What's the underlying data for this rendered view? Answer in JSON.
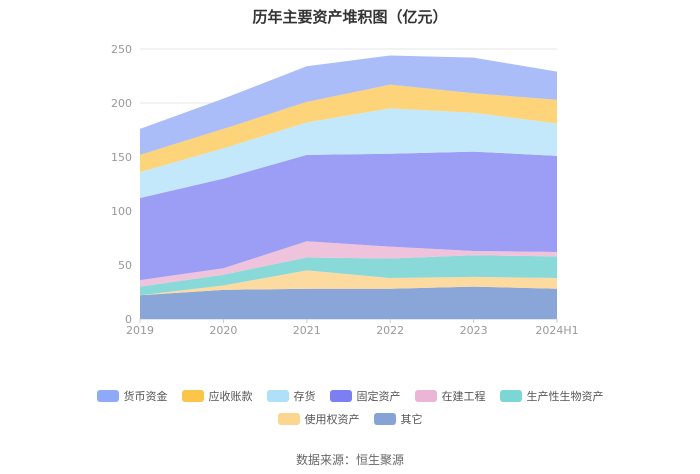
{
  "chart_data": {
    "type": "area",
    "stacked": true,
    "title": "历年主要资产堆积图（亿元）",
    "categories": [
      "2019",
      "2020",
      "2021",
      "2022",
      "2023",
      "2024H1"
    ],
    "ylim": [
      0,
      250
    ],
    "yticks": [
      0,
      50,
      100,
      150,
      200,
      250
    ],
    "grid": true,
    "legend_position": "bottom",
    "series": [
      {
        "name": "其它",
        "color": "#8aa6d8",
        "values": [
          22,
          27,
          28,
          28,
          30,
          28
        ]
      },
      {
        "name": "使用权资产",
        "color": "#fddba0",
        "values": [
          0,
          4,
          17,
          10,
          9,
          10
        ]
      },
      {
        "name": "生产性生物资产",
        "color": "#8ad9d9",
        "values": [
          8,
          10,
          12,
          18,
          20,
          20
        ]
      },
      {
        "name": "在建工程",
        "color": "#f0c3dd",
        "values": [
          6,
          6,
          15,
          11,
          4,
          4
        ]
      },
      {
        "name": "固定资产",
        "color": "#9c9ef6",
        "values": [
          76,
          83,
          80,
          86,
          92,
          89
        ]
      },
      {
        "name": "存货",
        "color": "#c4e8fb",
        "values": [
          24,
          28,
          30,
          42,
          36,
          30
        ]
      },
      {
        "name": "应收账款",
        "color": "#fdd47a",
        "values": [
          16,
          18,
          19,
          22,
          18,
          22
        ]
      },
      {
        "name": "货币资金",
        "color": "#aabdf9",
        "values": [
          24,
          28,
          33,
          27,
          33,
          26
        ]
      }
    ]
  },
  "legend": {
    "row1": [
      {
        "name": "货币资金",
        "color": "#8fa9f6"
      },
      {
        "name": "应收账款",
        "color": "#fcc54a"
      },
      {
        "name": "存货",
        "color": "#aee0fa"
      },
      {
        "name": "固定资产",
        "color": "#7b7ff2"
      },
      {
        "name": "在建工程",
        "color": "#ebb6d6"
      },
      {
        "name": "生产性生物资产",
        "color": "#7bd6d6"
      }
    ],
    "row2": [
      {
        "name": "使用权资产",
        "color": "#fcd68e"
      },
      {
        "name": "其它",
        "color": "#86a3d6"
      }
    ]
  },
  "source": "数据来源：恒生聚源"
}
